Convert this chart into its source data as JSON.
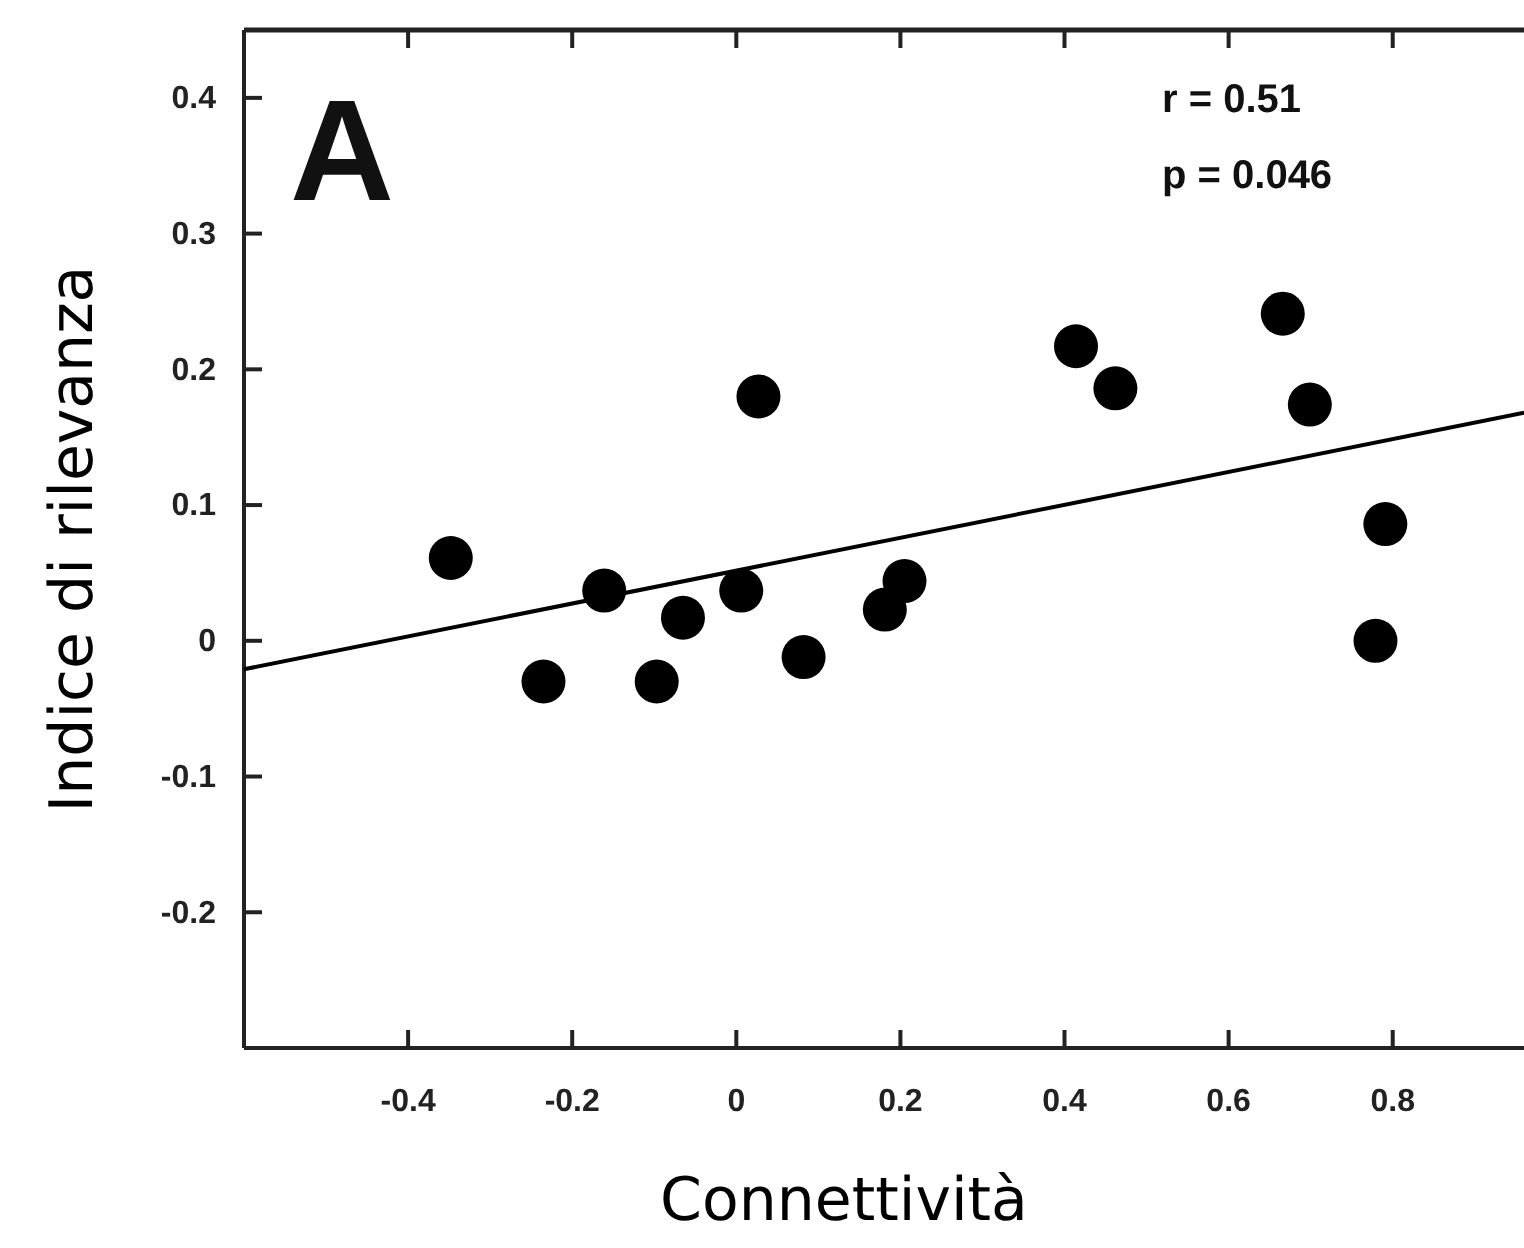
{
  "chart_data": {
    "type": "scatter",
    "xlabel": "Connettività",
    "ylabel": "Indice di rilevanza",
    "xlim": [
      -0.6,
      0.96
    ],
    "ylim": [
      -0.3,
      0.45
    ],
    "xticks": [
      -0.4,
      -0.2,
      0,
      0.2,
      0.4,
      0.6,
      0.8
    ],
    "yticks": [
      -0.2,
      -0.1,
      0,
      0.1,
      0.2,
      0.3,
      0.4
    ],
    "grid": false,
    "marker": "circle",
    "annotations": [
      "A",
      "r = 0.51",
      "p = 0.046"
    ],
    "series": [
      {
        "color": "#000000",
        "x": [
          -0.348,
          -0.235,
          -0.161,
          -0.097,
          -0.065,
          0.006,
          0.027,
          0.082,
          0.181,
          0.205,
          0.414,
          0.462,
          0.666,
          0.699,
          0.779,
          0.791
        ],
        "values": [
          0.061,
          -0.03,
          0.037,
          -0.03,
          0.017,
          0.037,
          0.18,
          -0.012,
          0.023,
          0.044,
          0.217,
          0.186,
          0.241,
          0.174,
          0.0,
          0.086
        ]
      },
      {
        "type": "line",
        "color": "#000000",
        "line_style": "solid",
        "marker": "none",
        "x": [
          -0.6,
          0.96
        ],
        "values": [
          -0.021,
          0.168
        ]
      }
    ]
  }
}
